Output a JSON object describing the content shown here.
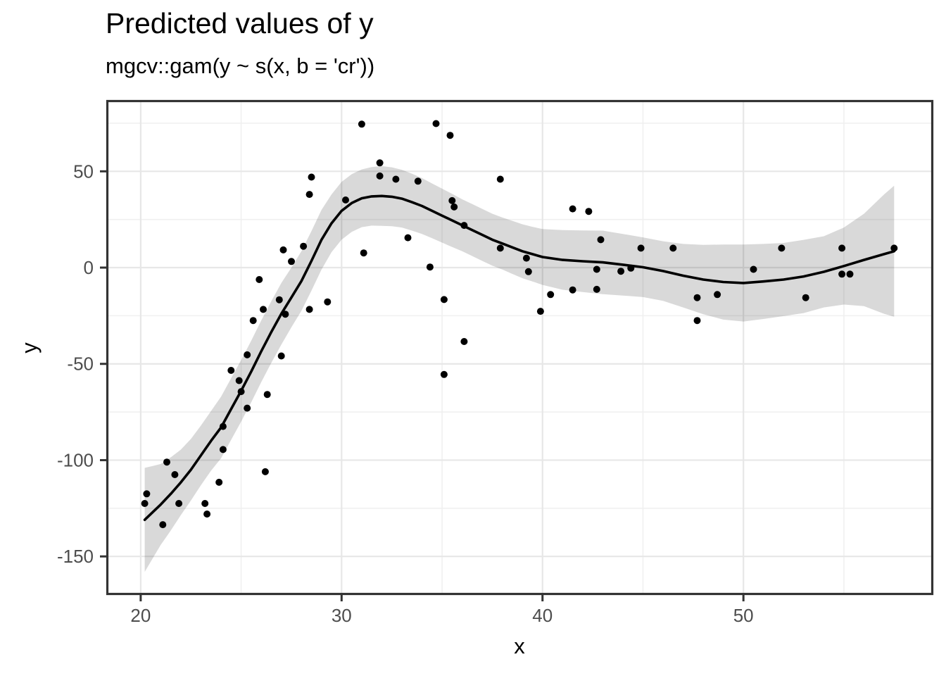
{
  "title": "Predicted values of y",
  "subtitle": "mgcv::gam(y ~ s(x, b = 'cr'))",
  "chart_data": {
    "type": "scatter",
    "title": "Predicted values of y",
    "subtitle": "mgcv::gam(y ~ s(x, b = 'cr'))",
    "xlabel": "x",
    "ylabel": "y",
    "legend": "none",
    "grid": "on",
    "xlim": [
      18.34,
      59.4
    ],
    "ylim": [
      -169.5,
      86.5
    ],
    "x_tick_values": [
      20,
      30,
      40,
      50
    ],
    "x_tick_labels": [
      "20",
      "30",
      "40",
      "50"
    ],
    "x_minor_ticks": [
      25,
      35,
      45,
      55
    ],
    "y_tick_values": [
      50,
      0,
      -50,
      -100,
      -150
    ],
    "y_tick_labels": [
      "50",
      "0",
      "-50",
      "-100",
      "-150"
    ],
    "y_minor_ticks": [
      75,
      25,
      -25,
      -75,
      -125
    ],
    "points": [
      [
        20.2,
        -122.5
      ],
      [
        20.3,
        -117.5
      ],
      [
        21.1,
        -133.5
      ],
      [
        21.3,
        -101.0
      ],
      [
        21.7,
        -107.5
      ],
      [
        21.9,
        -122.5
      ],
      [
        23.2,
        -122.5
      ],
      [
        23.3,
        -128.0
      ],
      [
        23.9,
        -111.5
      ],
      [
        24.1,
        -94.5
      ],
      [
        24.1,
        -82.5
      ],
      [
        26.2,
        -106.0
      ],
      [
        24.5,
        -53.4
      ],
      [
        24.9,
        -58.7
      ],
      [
        25.0,
        -64.4
      ],
      [
        25.3,
        -73.0
      ],
      [
        26.3,
        -65.9
      ],
      [
        25.3,
        -45.3
      ],
      [
        27.0,
        -45.9
      ],
      [
        25.6,
        -27.5
      ],
      [
        26.1,
        -21.7
      ],
      [
        26.9,
        -16.7
      ],
      [
        27.2,
        -24.2
      ],
      [
        25.9,
        -6.2
      ],
      [
        27.1,
        9.2
      ],
      [
        27.5,
        3.2
      ],
      [
        28.1,
        11.1
      ],
      [
        28.4,
        -21.7
      ],
      [
        29.3,
        -17.8
      ],
      [
        28.5,
        47.0
      ],
      [
        28.4,
        38.0
      ],
      [
        30.2,
        35.1
      ],
      [
        31.0,
        74.5
      ],
      [
        31.1,
        7.6
      ],
      [
        31.9,
        54.4
      ],
      [
        31.9,
        47.6
      ],
      [
        32.7,
        45.9
      ],
      [
        33.8,
        44.9
      ],
      [
        33.3,
        15.5
      ],
      [
        34.4,
        0.3
      ],
      [
        34.7,
        74.8
      ],
      [
        35.4,
        68.7
      ],
      [
        35.5,
        34.8
      ],
      [
        35.6,
        31.5
      ],
      [
        36.1,
        21.9
      ],
      [
        37.9,
        45.9
      ],
      [
        37.9,
        10.1
      ],
      [
        35.1,
        -16.6
      ],
      [
        36.1,
        -38.4
      ],
      [
        35.1,
        -55.5
      ],
      [
        39.2,
        4.9
      ],
      [
        39.3,
        -2.1
      ],
      [
        39.9,
        -22.7
      ],
      [
        40.4,
        -14.0
      ],
      [
        41.5,
        30.5
      ],
      [
        42.3,
        29.2
      ],
      [
        41.5,
        -11.6
      ],
      [
        42.7,
        -11.3
      ],
      [
        42.9,
        14.5
      ],
      [
        42.7,
        -0.9
      ],
      [
        43.9,
        -1.9
      ],
      [
        44.4,
        -0.3
      ],
      [
        44.9,
        10.1
      ],
      [
        46.5,
        10.1
      ],
      [
        47.7,
        -15.6
      ],
      [
        48.7,
        -14.0
      ],
      [
        47.7,
        -27.5
      ],
      [
        50.5,
        -0.9
      ],
      [
        51.9,
        10.1
      ],
      [
        53.1,
        -15.6
      ],
      [
        54.9,
        10.1
      ],
      [
        54.9,
        -3.4
      ],
      [
        55.3,
        -3.4
      ],
      [
        57.5,
        10.1
      ]
    ],
    "smooth": {
      "x": [
        20.2,
        20.6,
        21,
        21.5,
        22,
        22.5,
        23,
        23.5,
        24,
        24.5,
        25,
        25.5,
        26,
        26.5,
        27,
        27.5,
        28,
        28.5,
        29,
        29.5,
        30,
        30.5,
        31,
        31.5,
        32,
        32.5,
        33,
        33.5,
        34,
        34.5,
        35,
        35.5,
        36,
        36.5,
        37,
        37.5,
        38,
        38.5,
        39,
        39.5,
        40,
        41,
        42,
        43,
        44,
        45,
        46,
        47,
        48,
        49,
        50,
        51,
        52,
        53,
        54,
        55,
        56,
        57,
        57.5
      ],
      "y": [
        -131,
        -127,
        -123,
        -117.5,
        -111.5,
        -105,
        -97.5,
        -90,
        -83,
        -73.5,
        -64,
        -54,
        -43.5,
        -33.5,
        -24,
        -15.5,
        -7,
        3.5,
        14.5,
        23,
        29.5,
        33.5,
        36,
        37,
        37.2,
        36.8,
        35.8,
        34,
        32,
        29.5,
        27,
        24.5,
        22,
        19.5,
        17,
        14.5,
        12.5,
        10.5,
        8.5,
        7,
        5.5,
        4,
        3.3,
        2.7,
        1.5,
        0.2,
        -1.8,
        -4.2,
        -6.2,
        -7.5,
        -8,
        -7.2,
        -6.2,
        -4.6,
        -2.2,
        0.8,
        4,
        7,
        8.5
      ]
    },
    "ribbon": {
      "x": [
        20.2,
        20.6,
        21,
        21.5,
        22,
        22.5,
        23,
        23.5,
        24,
        24.5,
        25,
        25.5,
        26,
        26.5,
        27,
        27.5,
        28,
        28.5,
        29,
        29.5,
        30,
        30.5,
        31,
        31.5,
        32,
        32.5,
        33,
        33.5,
        34,
        34.5,
        35,
        35.5,
        36,
        36.5,
        37,
        37.5,
        38,
        38.5,
        39,
        39.5,
        40,
        41,
        42,
        43,
        44,
        45,
        46,
        47,
        48,
        49,
        50,
        51,
        52,
        53,
        54,
        55,
        56,
        57,
        57.5
      ],
      "upper": [
        -104,
        -103,
        -102,
        -98.5,
        -94.5,
        -89,
        -82,
        -74.5,
        -67,
        -57.5,
        -48,
        -38,
        -27.5,
        -17.5,
        -8,
        0,
        8.5,
        19,
        30,
        38,
        44.5,
        48.5,
        51,
        52.2,
        52.7,
        52.1,
        50.8,
        48.8,
        46.5,
        43.7,
        41,
        38.3,
        35.5,
        33,
        30.5,
        28,
        26,
        24.3,
        22.5,
        21.2,
        20,
        19.5,
        19.3,
        19.2,
        17.5,
        15.7,
        13.7,
        12.3,
        11.8,
        12,
        12,
        12.3,
        12.8,
        14.4,
        16.3,
        20.8,
        28,
        38,
        42.5
      ],
      "lower": [
        -158,
        -151,
        -144,
        -136.5,
        -128.5,
        -121,
        -113,
        -105.5,
        -99,
        -89.5,
        -80,
        -70,
        -59.5,
        -49.5,
        -40,
        -31,
        -22.5,
        -12,
        -1,
        8,
        14.5,
        18.5,
        21,
        21.8,
        21.7,
        21.5,
        20.8,
        19.2,
        17.5,
        15.3,
        13,
        10.7,
        8.5,
        6,
        3.5,
        1,
        -1,
        -3.3,
        -5.5,
        -7.2,
        -9,
        -11.5,
        -12.7,
        -13.8,
        -14.5,
        -15.3,
        -17.3,
        -20.7,
        -24.2,
        -27,
        -28,
        -26.7,
        -25.2,
        -23.6,
        -20.7,
        -19.2,
        -20,
        -24,
        -25.5
      ]
    },
    "colors": {
      "background": "#ffffff",
      "point": "#000000",
      "line": "#000000",
      "ribbon": "rgba(0,0,0,0.15)",
      "grid_major": "#e7e7e7",
      "grid_minor": "#f0f0f0",
      "border": "#333333",
      "tick": "#333333",
      "tick_label": "#4d4d4d",
      "text": "#000000"
    }
  }
}
